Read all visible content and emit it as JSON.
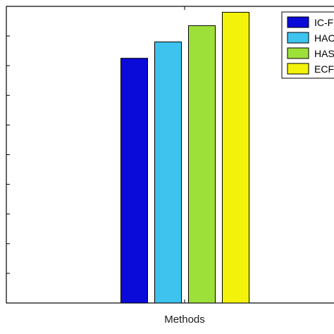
{
  "chart_data": {
    "type": "bar",
    "xlabel": "Methods",
    "ylabel": "",
    "title": "",
    "categories": [
      "Methods"
    ],
    "ylim": [
      0,
      10
    ],
    "grid": false,
    "legend_position": "top-right",
    "series": [
      {
        "name": "IC-F",
        "values": [
          8.25
        ],
        "color": "#0a0ad9"
      },
      {
        "name": "HAC",
        "values": [
          8.8
        ],
        "color": "#3ec3ef"
      },
      {
        "name": "HAS",
        "values": [
          9.35
        ],
        "color": "#9ee03a"
      },
      {
        "name": "ECF",
        "values": [
          9.8
        ],
        "color": "#f2f20a"
      }
    ]
  }
}
